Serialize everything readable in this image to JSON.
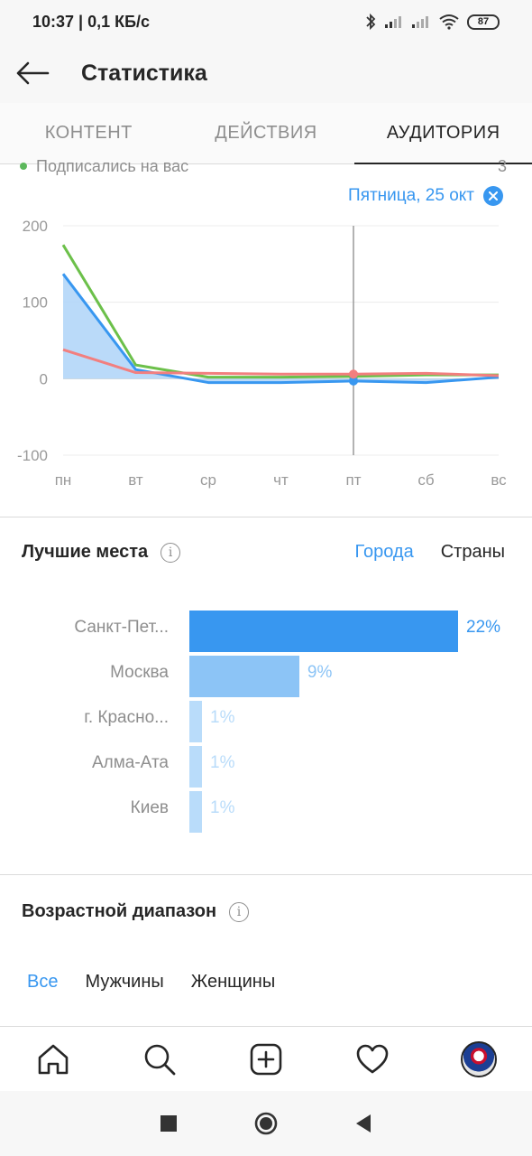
{
  "status_bar": {
    "time_speed": "10:37 | 0,1 КБ/с",
    "battery": "87"
  },
  "app_bar": {
    "title": "Статистика"
  },
  "tabs": [
    {
      "label": "КОНТЕНТ",
      "active": false
    },
    {
      "label": "ДЕЙСТВИЯ",
      "active": false
    },
    {
      "label": "АУДИТОРИЯ",
      "active": true
    }
  ],
  "legend": {
    "label": "Подписались на вас",
    "value": "3",
    "color": "#5cb85c"
  },
  "selected_date": "Пятница, 25 окт",
  "chart_data": {
    "type": "line",
    "categories": [
      "пн",
      "вт",
      "ср",
      "чт",
      "пт",
      "сб",
      "вс"
    ],
    "ylim": [
      -100,
      200
    ],
    "yticks": [
      "200",
      "100",
      "0",
      "-100"
    ],
    "grid": true,
    "highlight_category": "пт",
    "series": [
      {
        "color": "#6cc04a",
        "values": [
          175,
          18,
          2,
          2,
          3,
          5,
          5
        ]
      },
      {
        "color": "#3897f0",
        "values": [
          137,
          12,
          -5,
          -5,
          -3,
          -5,
          2
        ],
        "fill": "#b3d6f8"
      },
      {
        "color": "#f27f7f",
        "values": [
          38,
          8,
          7,
          6,
          6,
          7,
          4
        ]
      }
    ]
  },
  "top_locations": {
    "title": "Лучшие места",
    "toggle": [
      {
        "label": "Города",
        "active": true
      },
      {
        "label": "Страны",
        "active": false
      }
    ],
    "items": [
      {
        "label": "Санкт-Пет...",
        "value": 22,
        "pct": "22%",
        "color": "#3897f0",
        "text_color": "#3897f0"
      },
      {
        "label": "Москва",
        "value": 9,
        "pct": "9%",
        "color": "#8cc4f6",
        "text_color": "#8cc4f6"
      },
      {
        "label": "г. Красно...",
        "value": 1,
        "pct": "1%",
        "color": "#b9dcfa",
        "text_color": "#b9dcfa"
      },
      {
        "label": "Алма-Ата",
        "value": 1,
        "pct": "1%",
        "color": "#b9dcfa",
        "text_color": "#b9dcfa"
      },
      {
        "label": "Киев",
        "value": 1,
        "pct": "1%",
        "color": "#b9dcfa",
        "text_color": "#b9dcfa"
      }
    ]
  },
  "age_range": {
    "title": "Возрастной диапазон",
    "tabs": [
      {
        "label": "Все",
        "active": true
      },
      {
        "label": "Мужчины",
        "active": false
      },
      {
        "label": "Женщины",
        "active": false
      }
    ]
  },
  "bottom_nav": [
    "home-icon",
    "search-icon",
    "add-post-icon",
    "activity-heart-icon",
    "profile-avatar"
  ],
  "system_nav": [
    "recents-square-icon",
    "home-circle-icon",
    "back-triangle-icon"
  ]
}
